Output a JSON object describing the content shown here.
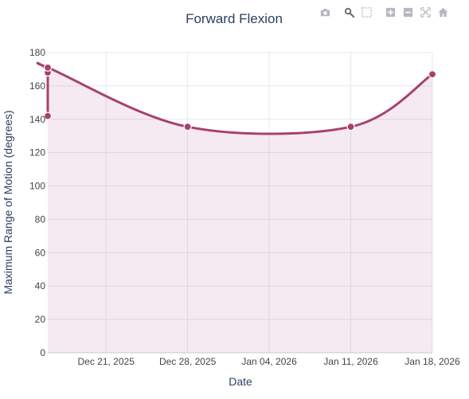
{
  "colors": {
    "line": "#a8416f",
    "fill": "rgba(168,65,111,0.11)",
    "grid": "#e6e8ee",
    "zero_line": "#cfd3dc",
    "title": "#2a3f5f",
    "modebar_icon": "#b4b8c0",
    "modebar_active": "#6c717a"
  },
  "modebar": {
    "icons": [
      "camera-icon",
      "zoom-icon",
      "box-select-icon",
      "zoom-in-icon",
      "zoom-out-icon",
      "autoscale-icon",
      "home-icon"
    ]
  },
  "chart_data": {
    "type": "line",
    "title": "Forward Flexion",
    "xlabel": "Date",
    "ylabel": "Maximum Range of Motion (degrees)",
    "ylim": [
      0,
      180
    ],
    "xlim": [
      "2025-12-16",
      "2026-01-18"
    ],
    "x_ticks": [
      "Dec 21, 2025",
      "Dec 28, 2025",
      "Jan 04, 2026",
      "Jan 11, 2026",
      "Jan 18, 2026"
    ],
    "x_tick_dates": [
      "2025-12-21",
      "2025-12-28",
      "2026-01-04",
      "2026-01-11",
      "2026-01-18"
    ],
    "y_ticks": [
      0,
      20,
      40,
      60,
      80,
      100,
      120,
      140,
      160,
      180
    ],
    "grid": true,
    "legend": "none",
    "fill": "tozeroy",
    "line_shape": "spline",
    "series": [
      {
        "x": [
          "2025-12-16",
          "2025-12-16",
          "2025-12-16",
          "2025-12-28",
          "2026-01-11",
          "2026-01-18"
        ],
        "y": [
          142,
          168,
          171,
          135.5,
          135.5,
          167
        ]
      }
    ]
  }
}
